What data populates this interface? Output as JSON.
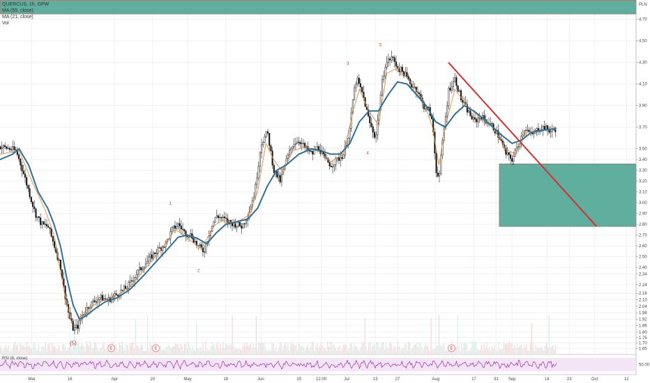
{
  "legend": {
    "symbol_line": "QUERCUS, 1h, GPW",
    "ma1": "MA (55, close)",
    "ma2": "MA (21, close)",
    "vol": "Vol",
    "rsi": "RSI (8, close)"
  },
  "colors": {
    "bull": "#333333",
    "bear": "#111111",
    "ma_long": "#2e6f96",
    "ma_short": "#e08a3c",
    "trend": "#d32f2f",
    "zone_fill": "#5fae9e",
    "rsi_line": "#9c27b0",
    "rsi_band": "#f3e5f5",
    "grid": "#f0f0f0"
  },
  "chart_data": {
    "type": "candlestick",
    "ylim": [
      1.6,
      4.75
    ],
    "price_ticks": [
      "4.70",
      "4.50",
      "4.30",
      "4.10",
      "3.90",
      "3.70",
      "3.50",
      "3.40",
      "3.30",
      "3.20",
      "3.10",
      "3.00",
      "2.90",
      "2.80",
      "2.70",
      "2.60",
      "2.50",
      "2.40",
      "2.34",
      "2.24",
      "2.16",
      "2.10",
      "2.04",
      "1.98",
      "1.92",
      "1.86",
      "1.80",
      "1.75",
      "1.70",
      "1.65"
    ],
    "price_label": "PLN",
    "x_ticks": [
      {
        "label": "Mar",
        "t": 0.05
      },
      {
        "label": "16",
        "t": 0.11
      },
      {
        "label": "Apr",
        "t": 0.18
      },
      {
        "label": "20",
        "t": 0.24
      },
      {
        "label": "May",
        "t": 0.295
      },
      {
        "label": "18",
        "t": 0.355
      },
      {
        "label": "Jun",
        "t": 0.41
      },
      {
        "label": "15",
        "t": 0.47
      },
      {
        "label": "12:00",
        "t": 0.505
      },
      {
        "label": "Jul",
        "t": 0.545
      },
      {
        "label": "13",
        "t": 0.59
      },
      {
        "label": "27",
        "t": 0.625
      },
      {
        "label": "Aug",
        "t": 0.685
      },
      {
        "label": "17",
        "t": 0.745
      },
      {
        "label": "31",
        "t": 0.78
      },
      {
        "label": "Sep",
        "t": 0.805
      },
      {
        "label": "14",
        "t": 0.86
      },
      {
        "label": "23",
        "t": 0.895
      },
      {
        "label": "Oct",
        "t": 0.935
      },
      {
        "label": "12",
        "t": 0.985
      }
    ],
    "price_path": [
      [
        0.0,
        3.52
      ],
      [
        0.015,
        3.5
      ],
      [
        0.025,
        3.48
      ],
      [
        0.035,
        3.3
      ],
      [
        0.045,
        3.1
      ],
      [
        0.055,
        2.9
      ],
      [
        0.065,
        2.8
      ],
      [
        0.075,
        2.78
      ],
      [
        0.085,
        2.6
      ],
      [
        0.095,
        2.4
      ],
      [
        0.1,
        2.2
      ],
      [
        0.108,
        1.95
      ],
      [
        0.115,
        1.82
      ],
      [
        0.122,
        1.86
      ],
      [
        0.13,
        1.97
      ],
      [
        0.14,
        2.05
      ],
      [
        0.155,
        2.12
      ],
      [
        0.17,
        2.1
      ],
      [
        0.185,
        2.16
      ],
      [
        0.2,
        2.22
      ],
      [
        0.215,
        2.35
      ],
      [
        0.23,
        2.45
      ],
      [
        0.245,
        2.55
      ],
      [
        0.26,
        2.62
      ],
      [
        0.27,
        2.75
      ],
      [
        0.28,
        2.8
      ],
      [
        0.29,
        2.72
      ],
      [
        0.3,
        2.7
      ],
      [
        0.31,
        2.6
      ],
      [
        0.32,
        2.55
      ],
      [
        0.33,
        2.75
      ],
      [
        0.34,
        2.88
      ],
      [
        0.35,
        2.85
      ],
      [
        0.36,
        2.82
      ],
      [
        0.37,
        2.8
      ],
      [
        0.38,
        2.78
      ],
      [
        0.39,
        2.9
      ],
      [
        0.4,
        3.1
      ],
      [
        0.41,
        3.55
      ],
      [
        0.42,
        3.65
      ],
      [
        0.43,
        3.3
      ],
      [
        0.44,
        3.2
      ],
      [
        0.45,
        3.4
      ],
      [
        0.46,
        3.55
      ],
      [
        0.47,
        3.58
      ],
      [
        0.48,
        3.5
      ],
      [
        0.49,
        3.45
      ],
      [
        0.5,
        3.52
      ],
      [
        0.51,
        3.4
      ],
      [
        0.52,
        3.35
      ],
      [
        0.53,
        3.4
      ],
      [
        0.54,
        3.45
      ],
      [
        0.55,
        3.7
      ],
      [
        0.555,
        4.0
      ],
      [
        0.56,
        4.15
      ],
      [
        0.57,
        4.0
      ],
      [
        0.58,
        3.75
      ],
      [
        0.59,
        3.6
      ],
      [
        0.6,
        4.1
      ],
      [
        0.605,
        4.28
      ],
      [
        0.615,
        4.35
      ],
      [
        0.625,
        4.25
      ],
      [
        0.635,
        4.2
      ],
      [
        0.645,
        4.1
      ],
      [
        0.655,
        4.05
      ],
      [
        0.665,
        3.9
      ],
      [
        0.675,
        3.85
      ],
      [
        0.68,
        3.7
      ],
      [
        0.685,
        3.3
      ],
      [
        0.69,
        3.25
      ],
      [
        0.695,
        3.55
      ],
      [
        0.705,
        4.05
      ],
      [
        0.715,
        4.15
      ],
      [
        0.725,
        3.95
      ],
      [
        0.735,
        3.85
      ],
      [
        0.745,
        3.75
      ],
      [
        0.755,
        3.8
      ],
      [
        0.765,
        3.75
      ],
      [
        0.775,
        3.7
      ],
      [
        0.785,
        3.6
      ],
      [
        0.795,
        3.45
      ],
      [
        0.805,
        3.4
      ],
      [
        0.815,
        3.55
      ],
      [
        0.825,
        3.7
      ],
      [
        0.835,
        3.62
      ],
      [
        0.845,
        3.68
      ],
      [
        0.855,
        3.7
      ],
      [
        0.865,
        3.66
      ],
      [
        0.875,
        3.69
      ]
    ],
    "ma_long_path": [
      [
        0.0,
        3.4
      ],
      [
        0.02,
        3.45
      ],
      [
        0.03,
        3.5
      ],
      [
        0.045,
        3.35
      ],
      [
        0.06,
        3.1
      ],
      [
        0.075,
        2.95
      ],
      [
        0.085,
        2.8
      ],
      [
        0.095,
        2.6
      ],
      [
        0.105,
        2.3
      ],
      [
        0.115,
        2.05
      ],
      [
        0.125,
        1.92
      ],
      [
        0.135,
        1.95
      ],
      [
        0.15,
        2.02
      ],
      [
        0.165,
        2.08
      ],
      [
        0.185,
        2.12
      ],
      [
        0.205,
        2.2
      ],
      [
        0.225,
        2.32
      ],
      [
        0.245,
        2.45
      ],
      [
        0.265,
        2.58
      ],
      [
        0.28,
        2.68
      ],
      [
        0.295,
        2.7
      ],
      [
        0.31,
        2.67
      ],
      [
        0.325,
        2.62
      ],
      [
        0.34,
        2.72
      ],
      [
        0.355,
        2.8
      ],
      [
        0.37,
        2.82
      ],
      [
        0.39,
        2.85
      ],
      [
        0.405,
        2.95
      ],
      [
        0.42,
        3.15
      ],
      [
        0.435,
        3.3
      ],
      [
        0.45,
        3.35
      ],
      [
        0.47,
        3.45
      ],
      [
        0.49,
        3.5
      ],
      [
        0.505,
        3.48
      ],
      [
        0.52,
        3.45
      ],
      [
        0.535,
        3.45
      ],
      [
        0.55,
        3.55
      ],
      [
        0.565,
        3.75
      ],
      [
        0.58,
        3.85
      ],
      [
        0.595,
        3.85
      ],
      [
        0.61,
        4.0
      ],
      [
        0.625,
        4.12
      ],
      [
        0.64,
        4.1
      ],
      [
        0.655,
        4.0
      ],
      [
        0.67,
        3.9
      ],
      [
        0.685,
        3.75
      ],
      [
        0.7,
        3.7
      ],
      [
        0.715,
        3.82
      ],
      [
        0.73,
        3.9
      ],
      [
        0.745,
        3.85
      ],
      [
        0.76,
        3.78
      ],
      [
        0.775,
        3.7
      ],
      [
        0.79,
        3.62
      ],
      [
        0.805,
        3.55
      ],
      [
        0.82,
        3.58
      ],
      [
        0.835,
        3.65
      ],
      [
        0.85,
        3.67
      ],
      [
        0.865,
        3.68
      ],
      [
        0.875,
        3.69
      ]
    ],
    "ma_short_path": [
      [
        0.0,
        3.45
      ],
      [
        0.03,
        3.48
      ],
      [
        0.05,
        3.2
      ],
      [
        0.07,
        2.95
      ],
      [
        0.085,
        2.7
      ],
      [
        0.1,
        2.2
      ],
      [
        0.112,
        1.9
      ],
      [
        0.122,
        1.92
      ],
      [
        0.135,
        2.0
      ],
      [
        0.155,
        2.08
      ],
      [
        0.18,
        2.13
      ],
      [
        0.205,
        2.22
      ],
      [
        0.23,
        2.4
      ],
      [
        0.255,
        2.58
      ],
      [
        0.275,
        2.75
      ],
      [
        0.29,
        2.7
      ],
      [
        0.305,
        2.62
      ],
      [
        0.318,
        2.58
      ],
      [
        0.335,
        2.78
      ],
      [
        0.35,
        2.84
      ],
      [
        0.37,
        2.81
      ],
      [
        0.39,
        2.88
      ],
      [
        0.405,
        3.1
      ],
      [
        0.418,
        3.55
      ],
      [
        0.43,
        3.4
      ],
      [
        0.445,
        3.28
      ],
      [
        0.46,
        3.48
      ],
      [
        0.48,
        3.52
      ],
      [
        0.5,
        3.48
      ],
      [
        0.52,
        3.38
      ],
      [
        0.54,
        3.45
      ],
      [
        0.555,
        3.85
      ],
      [
        0.565,
        4.05
      ],
      [
        0.58,
        3.85
      ],
      [
        0.595,
        3.72
      ],
      [
        0.608,
        4.2
      ],
      [
        0.625,
        4.25
      ],
      [
        0.645,
        4.12
      ],
      [
        0.665,
        3.95
      ],
      [
        0.68,
        3.7
      ],
      [
        0.69,
        3.35
      ],
      [
        0.7,
        3.7
      ],
      [
        0.715,
        4.05
      ],
      [
        0.735,
        3.9
      ],
      [
        0.755,
        3.78
      ],
      [
        0.775,
        3.7
      ],
      [
        0.795,
        3.5
      ],
      [
        0.81,
        3.45
      ],
      [
        0.825,
        3.65
      ],
      [
        0.845,
        3.66
      ],
      [
        0.865,
        3.68
      ],
      [
        0.875,
        3.69
      ]
    ],
    "trend_line": {
      "from": [
        0.705,
        4.3
      ],
      "to": [
        0.938,
        2.78
      ]
    },
    "zone": {
      "t_start": 0.785,
      "t_end": 1.0,
      "top": 3.36,
      "bottom": 2.78
    },
    "top_band": {
      "label": ""
    },
    "wave_labels": [
      {
        "text": "1",
        "t": 0.268,
        "v": 2.98
      },
      {
        "text": "2",
        "t": 0.312,
        "v": 2.36
      },
      {
        "text": "3",
        "t": 0.547,
        "v": 4.28
      },
      {
        "text": "4",
        "t": 0.578,
        "v": 3.45
      },
      {
        "text": "5",
        "t": 0.598,
        "v": 4.45
      },
      {
        "text": "(5)",
        "t": 0.115,
        "v": 1.68
      }
    ],
    "event_markers": [
      {
        "text": "E",
        "t": 0.175
      },
      {
        "text": "E",
        "t": 0.245
      },
      {
        "text": "E",
        "t": 0.71
      }
    ],
    "rsi_value": "50.00"
  }
}
